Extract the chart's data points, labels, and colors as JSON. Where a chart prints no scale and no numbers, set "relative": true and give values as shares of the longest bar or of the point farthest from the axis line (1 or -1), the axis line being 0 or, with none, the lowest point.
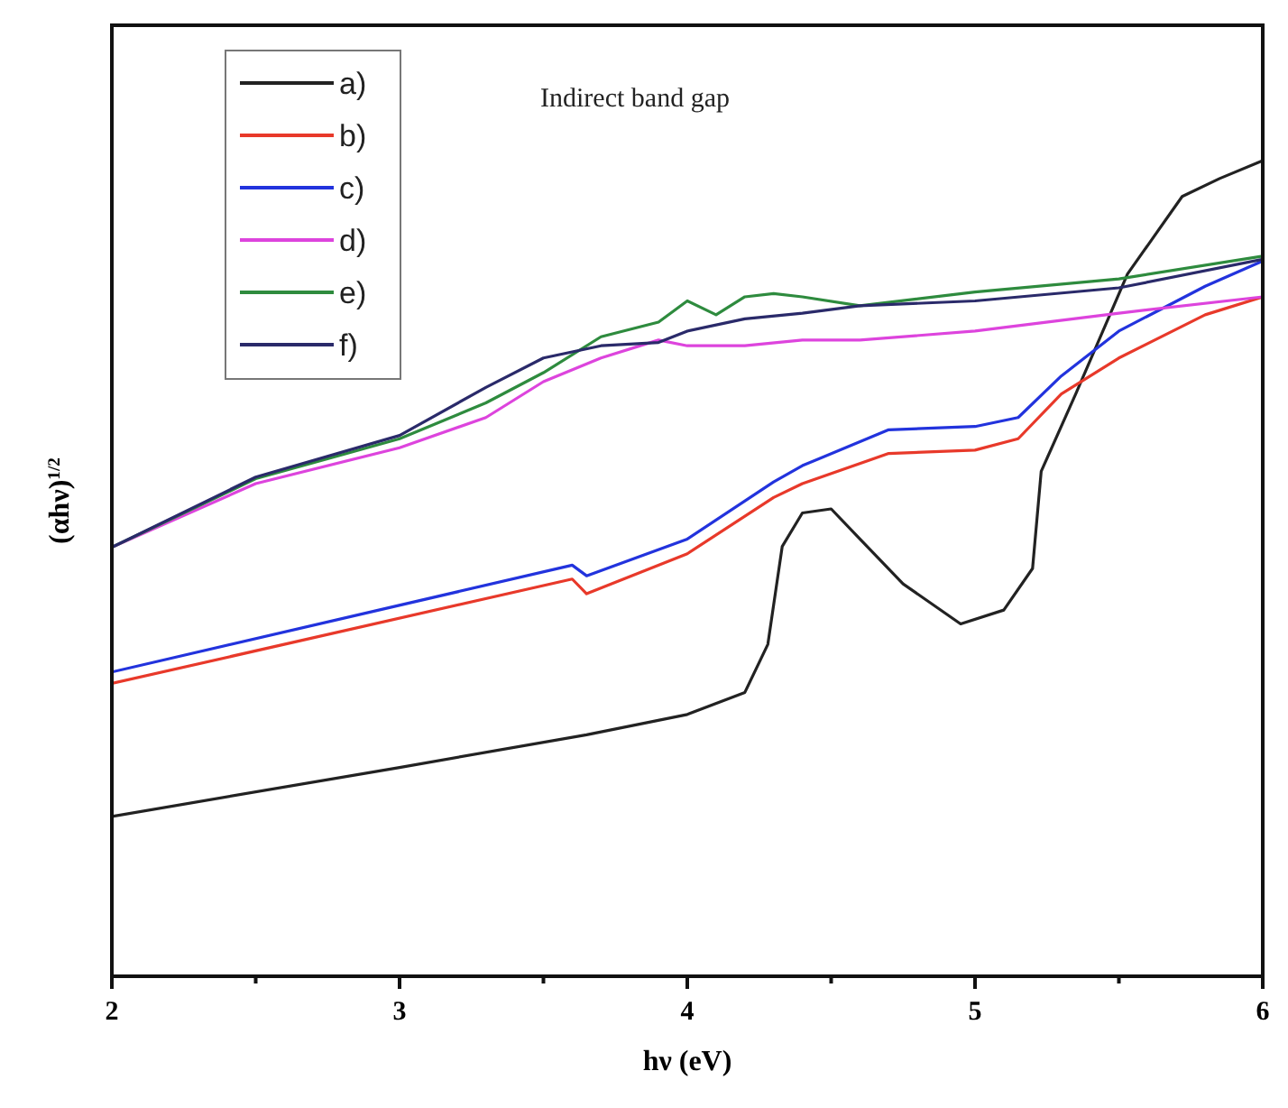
{
  "chart_data": {
    "type": "line",
    "xlabel": "hν (eV)",
    "ylabel": "(αhν)$^{1/2}$",
    "annotations": [
      "Indirect band gap"
    ],
    "relative": true,
    "legend": "top left",
    "grid": false,
    "line_style": "solid",
    "xlim": [
      2,
      6
    ],
    "xticks": [
      2,
      {
        "value": 2.5,
        "label": null
      },
      3,
      {
        "value": 3.5,
        "label": null
      },
      4,
      {
        "value": 4.5,
        "label": null
      },
      5,
      {
        "value": 5.5,
        "label": null
      },
      6
    ],
    "series": [
      {
        "name": "a)",
        "color": "#222222",
        "x": [
          2,
          3,
          3.65,
          4,
          4.2,
          4.28,
          4.33,
          4.4,
          4.5,
          4.6,
          4.75,
          4.95,
          5.1,
          5.2,
          5.23,
          5.35,
          5.53,
          5.72,
          5.85,
          6
        ],
        "values": [
          0.196,
          0.256,
          0.296,
          0.321,
          0.348,
          0.407,
          0.527,
          0.568,
          0.573,
          0.536,
          0.481,
          0.432,
          0.449,
          0.5,
          0.619,
          0.714,
          0.861,
          0.956,
          0.978,
          1.0
        ]
      },
      {
        "name": "b)",
        "color": "#e8392a",
        "x": [
          2,
          3.6,
          3.65,
          4,
          4.3,
          4.4,
          4.7,
          5.0,
          5.15,
          5.3,
          5.5,
          5.8,
          6
        ],
        "values": [
          0.359,
          0.487,
          0.469,
          0.518,
          0.587,
          0.604,
          0.641,
          0.645,
          0.659,
          0.714,
          0.758,
          0.811,
          0.833
        ]
      },
      {
        "name": "c)",
        "color": "#2233dd",
        "x": [
          2,
          3.6,
          3.65,
          4,
          4.3,
          4.4,
          4.7,
          5.0,
          5.15,
          5.3,
          5.5,
          5.8,
          6
        ],
        "values": [
          0.373,
          0.504,
          0.491,
          0.536,
          0.606,
          0.626,
          0.67,
          0.674,
          0.685,
          0.736,
          0.791,
          0.846,
          0.877
        ]
      },
      {
        "name": "d)",
        "color": "#dd44dd",
        "x": [
          2,
          2.5,
          3,
          3.3,
          3.5,
          3.7,
          3.9,
          4.0,
          4.2,
          4.4,
          4.6,
          5.0,
          5.5,
          6
        ],
        "values": [
          0.526,
          0.604,
          0.648,
          0.685,
          0.729,
          0.758,
          0.78,
          0.773,
          0.773,
          0.78,
          0.78,
          0.791,
          0.813,
          0.833
        ]
      },
      {
        "name": "e)",
        "color": "#2e8b3e",
        "x": [
          2,
          2.5,
          3,
          3.3,
          3.5,
          3.7,
          3.9,
          4.0,
          4.1,
          4.2,
          4.3,
          4.4,
          4.6,
          5.0,
          5.5,
          6
        ],
        "values": [
          0.526,
          0.61,
          0.659,
          0.703,
          0.74,
          0.784,
          0.802,
          0.828,
          0.811,
          0.833,
          0.837,
          0.833,
          0.822,
          0.839,
          0.855,
          0.883
        ]
      },
      {
        "name": "f)",
        "color": "#2a2a6a",
        "x": [
          2,
          2.5,
          3,
          3.3,
          3.5,
          3.7,
          3.9,
          4.0,
          4.2,
          4.4,
          4.6,
          5.0,
          5.5,
          6
        ],
        "values": [
          0.526,
          0.612,
          0.663,
          0.722,
          0.758,
          0.773,
          0.777,
          0.791,
          0.806,
          0.813,
          0.822,
          0.828,
          0.844,
          0.879
        ]
      }
    ]
  }
}
